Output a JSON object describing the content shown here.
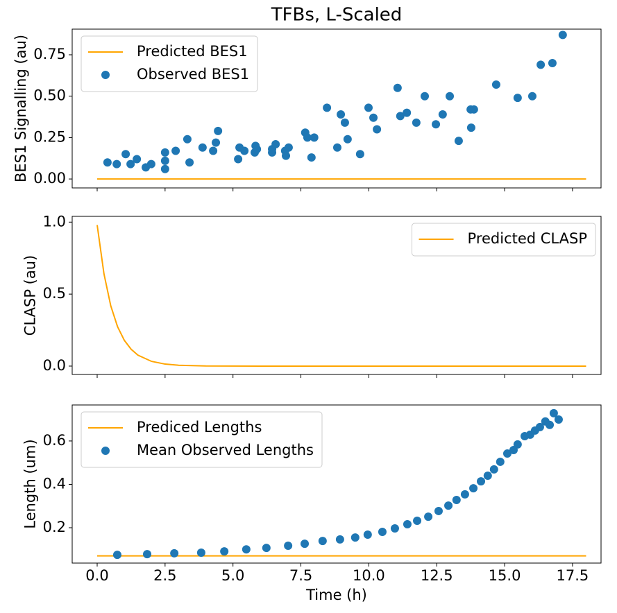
{
  "chart_data": [
    {
      "type": "line",
      "title": "TFBs, L-Scaled",
      "ylabel": "BES1 Signalling (au)",
      "xlim": [
        -0.92,
        18.55
      ],
      "ylim": [
        -0.054,
        0.905
      ],
      "xticks": [
        {
          "value": 0,
          "label": "0.0"
        },
        2.5,
        {
          "value": 5,
          "label": "5.0"
        },
        7.5,
        {
          "value": 10,
          "label": "10.0"
        },
        12.5,
        {
          "value": 15,
          "label": "15.0"
        },
        17.5
      ],
      "show_xticklabels": false,
      "yticks": [
        {
          "value": 0,
          "label": "0.00"
        },
        {
          "value": 0.25,
          "label": "0.25"
        },
        {
          "value": 0.5,
          "label": "0.50"
        },
        {
          "value": 0.75,
          "label": "0.75"
        }
      ],
      "legend": "upper left",
      "series": [
        {
          "name": "Predicted BES1",
          "type": "line",
          "color": "#ffa500",
          "x": [
            0,
            18
          ],
          "values": [
            0,
            0
          ]
        },
        {
          "name": "Observed BES1",
          "type": "scatter",
          "color": "#1f77b4",
          "x": [
            0.38,
            0.72,
            1.05,
            1.23,
            1.46,
            1.79,
            1.99,
            2.5,
            2.5,
            2.5,
            2.89,
            3.32,
            3.4,
            3.88,
            4.27,
            4.37,
            4.45,
            5.19,
            5.24,
            5.42,
            5.8,
            5.83,
            5.88,
            6.44,
            6.44,
            6.57,
            6.92,
            6.95,
            7.05,
            7.66,
            7.74,
            7.89,
            7.99,
            8.46,
            8.84,
            8.97,
            9.12,
            9.22,
            9.68,
            9.99,
            10.17,
            10.3,
            11.06,
            11.16,
            11.4,
            11.75,
            12.06,
            12.47,
            12.72,
            12.98,
            13.31,
            13.75,
            13.77,
            13.87,
            14.69,
            15.48,
            16.02,
            16.33,
            16.76,
            17.14
          ],
          "values": [
            0.1,
            0.09,
            0.15,
            0.09,
            0.12,
            0.07,
            0.09,
            0.06,
            0.11,
            0.16,
            0.17,
            0.24,
            0.1,
            0.19,
            0.17,
            0.22,
            0.29,
            0.12,
            0.19,
            0.17,
            0.16,
            0.2,
            0.18,
            0.16,
            0.18,
            0.21,
            0.17,
            0.14,
            0.19,
            0.28,
            0.25,
            0.13,
            0.25,
            0.43,
            0.19,
            0.39,
            0.34,
            0.24,
            0.15,
            0.43,
            0.37,
            0.3,
            0.55,
            0.38,
            0.4,
            0.34,
            0.5,
            0.33,
            0.39,
            0.5,
            0.23,
            0.42,
            0.31,
            0.42,
            0.57,
            0.49,
            0.5,
            0.69,
            0.7,
            0.87
          ]
        }
      ]
    },
    {
      "type": "line",
      "ylabel": "CLASP (au)",
      "xlim": [
        -0.92,
        18.55
      ],
      "ylim": [
        -0.058,
        1.04
      ],
      "xticks": [
        {
          "value": 0,
          "label": "0.0"
        },
        2.5,
        {
          "value": 5,
          "label": "5.0"
        },
        7.5,
        {
          "value": 10,
          "label": "10.0"
        },
        12.5,
        {
          "value": 15,
          "label": "15.0"
        },
        17.5
      ],
      "show_xticklabels": false,
      "yticks": [
        {
          "value": 0,
          "label": "0.0"
        },
        0.5,
        {
          "value": 1,
          "label": "1.0"
        }
      ],
      "legend": "upper right",
      "series": [
        {
          "name": "Predicted CLASP",
          "type": "line",
          "color": "#ffa500",
          "x": [
            0,
            0.25,
            0.5,
            0.75,
            1,
            1.25,
            1.5,
            2,
            2.5,
            3,
            4,
            6,
            10,
            14,
            18
          ],
          "values": [
            0.98,
            0.641,
            0.419,
            0.274,
            0.179,
            0.117,
            0.076,
            0.033,
            0.014,
            0.006,
            0.001,
            0,
            0,
            0,
            0
          ]
        }
      ]
    },
    {
      "type": "line",
      "ylabel": "Length (um)",
      "xlabel": "Time (h)",
      "xlim": [
        -0.92,
        18.55
      ],
      "ylim": [
        0.037,
        0.766
      ],
      "xticks": [
        {
          "value": 0,
          "label": "0.0"
        },
        2.5,
        {
          "value": 5,
          "label": "5.0"
        },
        7.5,
        {
          "value": 10,
          "label": "10.0"
        },
        12.5,
        {
          "value": 15,
          "label": "15.0"
        },
        17.5
      ],
      "yticks": [
        0.2,
        0.4,
        0.6
      ],
      "legend": "upper left",
      "series": [
        {
          "name": "Prediced Lengths",
          "type": "line",
          "color": "#ffa500",
          "x": [
            0,
            18
          ],
          "values": [
            0.07,
            0.07
          ]
        },
        {
          "name": "Mean Observed Lengths",
          "type": "scatter",
          "color": "#1f77b4",
          "x": [
            0.74,
            1.84,
            2.84,
            3.83,
            4.68,
            5.49,
            6.23,
            7.03,
            7.64,
            8.3,
            8.94,
            9.5,
            9.96,
            10.5,
            10.96,
            11.42,
            11.78,
            12.19,
            12.57,
            12.93,
            13.23,
            13.54,
            13.85,
            14.13,
            14.38,
            14.61,
            14.84,
            15.1,
            15.33,
            15.48,
            15.74,
            15.94,
            16.12,
            16.3,
            16.5,
            16.66,
            16.81,
            16.99
          ],
          "values": [
            0.075,
            0.078,
            0.082,
            0.085,
            0.091,
            0.1,
            0.107,
            0.117,
            0.126,
            0.139,
            0.146,
            0.155,
            0.168,
            0.181,
            0.197,
            0.216,
            0.232,
            0.251,
            0.277,
            0.302,
            0.328,
            0.354,
            0.382,
            0.414,
            0.44,
            0.469,
            0.504,
            0.542,
            0.558,
            0.584,
            0.622,
            0.629,
            0.648,
            0.664,
            0.69,
            0.674,
            0.728,
            0.699
          ]
        }
      ]
    }
  ]
}
